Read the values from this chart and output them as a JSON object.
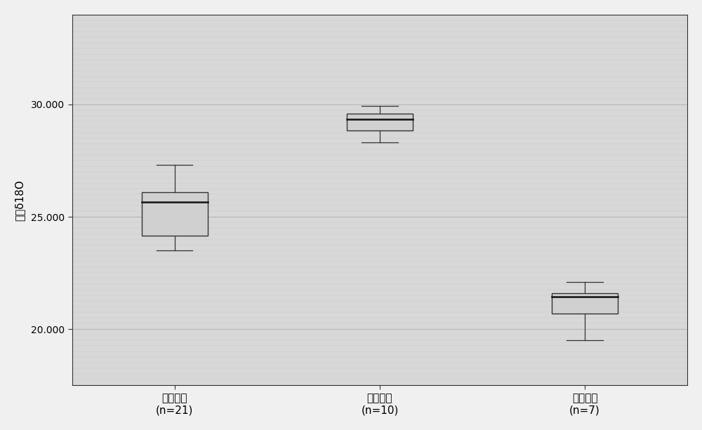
{
  "categories": [
    "山东产地\n(n=21)",
    "新疆产地\n(n=10)",
    "云南产地\n(n=7)"
  ],
  "ylabel": "乙醇δ18O",
  "ylim": [
    17.5,
    34.0
  ],
  "yticks": [
    20.0,
    25.0,
    30.0
  ],
  "ytick_labels": [
    "20.000",
    "25.000",
    "30.000"
  ],
  "figure_bg_color": "#f0f0f0",
  "plot_bg_color": "#d8d8d8",
  "box_fill_color": "#d0d0d0",
  "box_edge_color": "#333333",
  "median_color": "#111111",
  "whisker_color": "#333333",
  "box_data": [
    {
      "q1": 24.15,
      "q3": 26.1,
      "median": 25.65,
      "whisker_low": 23.5,
      "whisker_high": 27.3
    },
    {
      "q1": 28.85,
      "q3": 29.6,
      "median": 29.35,
      "whisker_low": 28.3,
      "whisker_high": 29.95
    },
    {
      "q1": 20.7,
      "q3": 21.6,
      "median": 21.45,
      "whisker_low": 19.5,
      "whisker_high": 22.1
    }
  ],
  "box_width": 0.32,
  "grid_color": "#bbbbbb",
  "tick_fontsize": 10,
  "label_fontsize": 11,
  "xlabel_fontsize": 11
}
